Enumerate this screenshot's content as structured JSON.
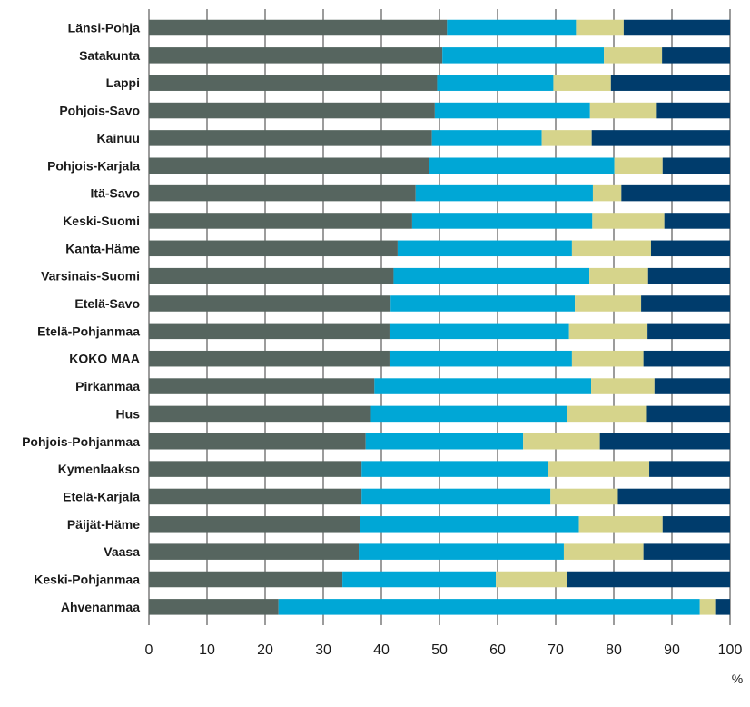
{
  "chart_data": {
    "type": "bar",
    "orientation": "horizontal",
    "stacked": true,
    "categories": [
      "Länsi-Pohja",
      "Satakunta",
      "Lappi",
      "Pohjois-Savo",
      "Kainuu",
      "Pohjois-Karjala",
      "Itä-Savo",
      "Keski-Suomi",
      "Kanta-Häme",
      "Varsinais-Suomi",
      "Etelä-Savo",
      "Etelä-Pohjanmaa",
      "KOKO MAA",
      "Pirkanmaa",
      "Hus",
      "Pohjois-Pohjanmaa",
      "Kymenlaakso",
      "Etelä-Karjala",
      "Päijät-Häme",
      "Vaasa",
      "Keski-Pohjanmaa",
      "Ahvenanmaa"
    ],
    "series": [
      {
        "color": "#56655f",
        "values": [
          51.3,
          50.5,
          49.6,
          49.2,
          48.7,
          48.2,
          45.9,
          45.3,
          42.8,
          42.1,
          41.6,
          41.4,
          41.4,
          38.8,
          38.2,
          37.3,
          36.6,
          36.6,
          36.3,
          36.1,
          33.3,
          22.3
        ]
      },
      {
        "color": "#00a7d6",
        "values": [
          22.2,
          27.8,
          20.0,
          26.7,
          18.9,
          31.9,
          30.5,
          31.0,
          30.0,
          33.7,
          31.7,
          30.9,
          31.4,
          37.3,
          33.7,
          27.1,
          32.1,
          32.5,
          37.7,
          35.3,
          26.4,
          72.5
        ]
      },
      {
        "color": "#d6d48b",
        "values": [
          8.2,
          10.0,
          9.9,
          11.5,
          8.6,
          8.3,
          4.9,
          12.4,
          13.6,
          10.1,
          11.4,
          13.5,
          12.3,
          10.9,
          13.8,
          13.2,
          17.4,
          11.6,
          14.4,
          13.7,
          12.2,
          2.8
        ]
      },
      {
        "color": "#003c6c",
        "values": [
          18.3,
          11.7,
          20.5,
          12.6,
          23.8,
          11.6,
          18.7,
          11.3,
          13.6,
          14.1,
          15.3,
          14.2,
          14.9,
          13.0,
          14.3,
          22.4,
          13.9,
          19.3,
          11.6,
          14.9,
          28.1,
          2.4
        ]
      }
    ],
    "xlim": [
      0,
      100
    ],
    "xticks": [
      0,
      10,
      20,
      30,
      40,
      50,
      60,
      70,
      80,
      90,
      100
    ],
    "xunit": "%",
    "grid": "vertical"
  }
}
